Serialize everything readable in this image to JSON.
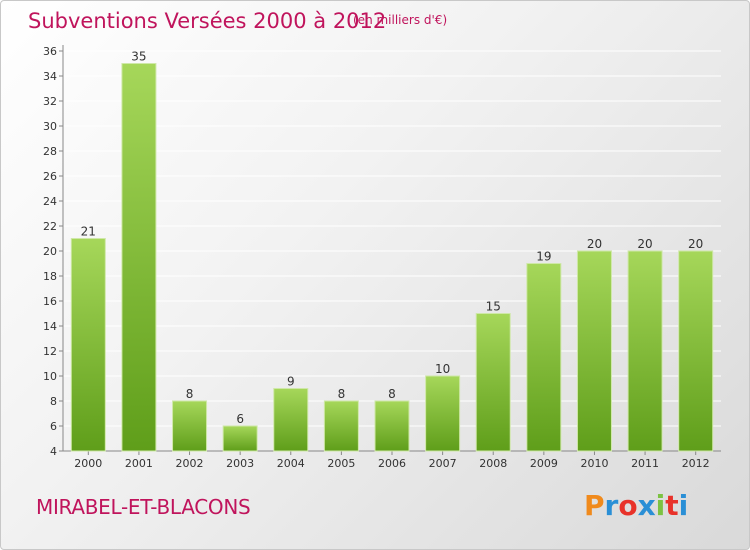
{
  "header": {
    "title": "Subventions Versées 2000 à 2012",
    "unit_note": "(en milliers d'€)"
  },
  "footer": {
    "commune": "MIRABEL-ET-BLACONS",
    "brand": "Proxiti",
    "brand_colors": [
      "#f08a1c",
      "#2a8fd6",
      "#e8322a",
      "#2a8fd6",
      "#7cc242",
      "#e8322a",
      "#2a8fd6"
    ]
  },
  "colors": {
    "accent": "#c0145c",
    "bar_top": "#a6d75a",
    "bar_bottom": "#5f9e1a",
    "grid": "#ffffff",
    "axis_text": "#333333"
  },
  "chart_data": {
    "type": "bar",
    "title": "Subventions Versées 2000 à 2012",
    "subtitle": "(en milliers d'€)",
    "categories": [
      "2000",
      "2001",
      "2002",
      "2003",
      "2004",
      "2005",
      "2006",
      "2007",
      "2008",
      "2009",
      "2010",
      "2011",
      "2012"
    ],
    "values": [
      21,
      35,
      8,
      6,
      9,
      8,
      8,
      10,
      15,
      19,
      20,
      20,
      20
    ],
    "ylim": [
      4,
      36
    ],
    "yticks": [
      4,
      6,
      8,
      10,
      12,
      14,
      16,
      18,
      20,
      22,
      24,
      26,
      28,
      30,
      32,
      34,
      36
    ],
    "grid": true,
    "legend": "none",
    "data_labels": true
  }
}
